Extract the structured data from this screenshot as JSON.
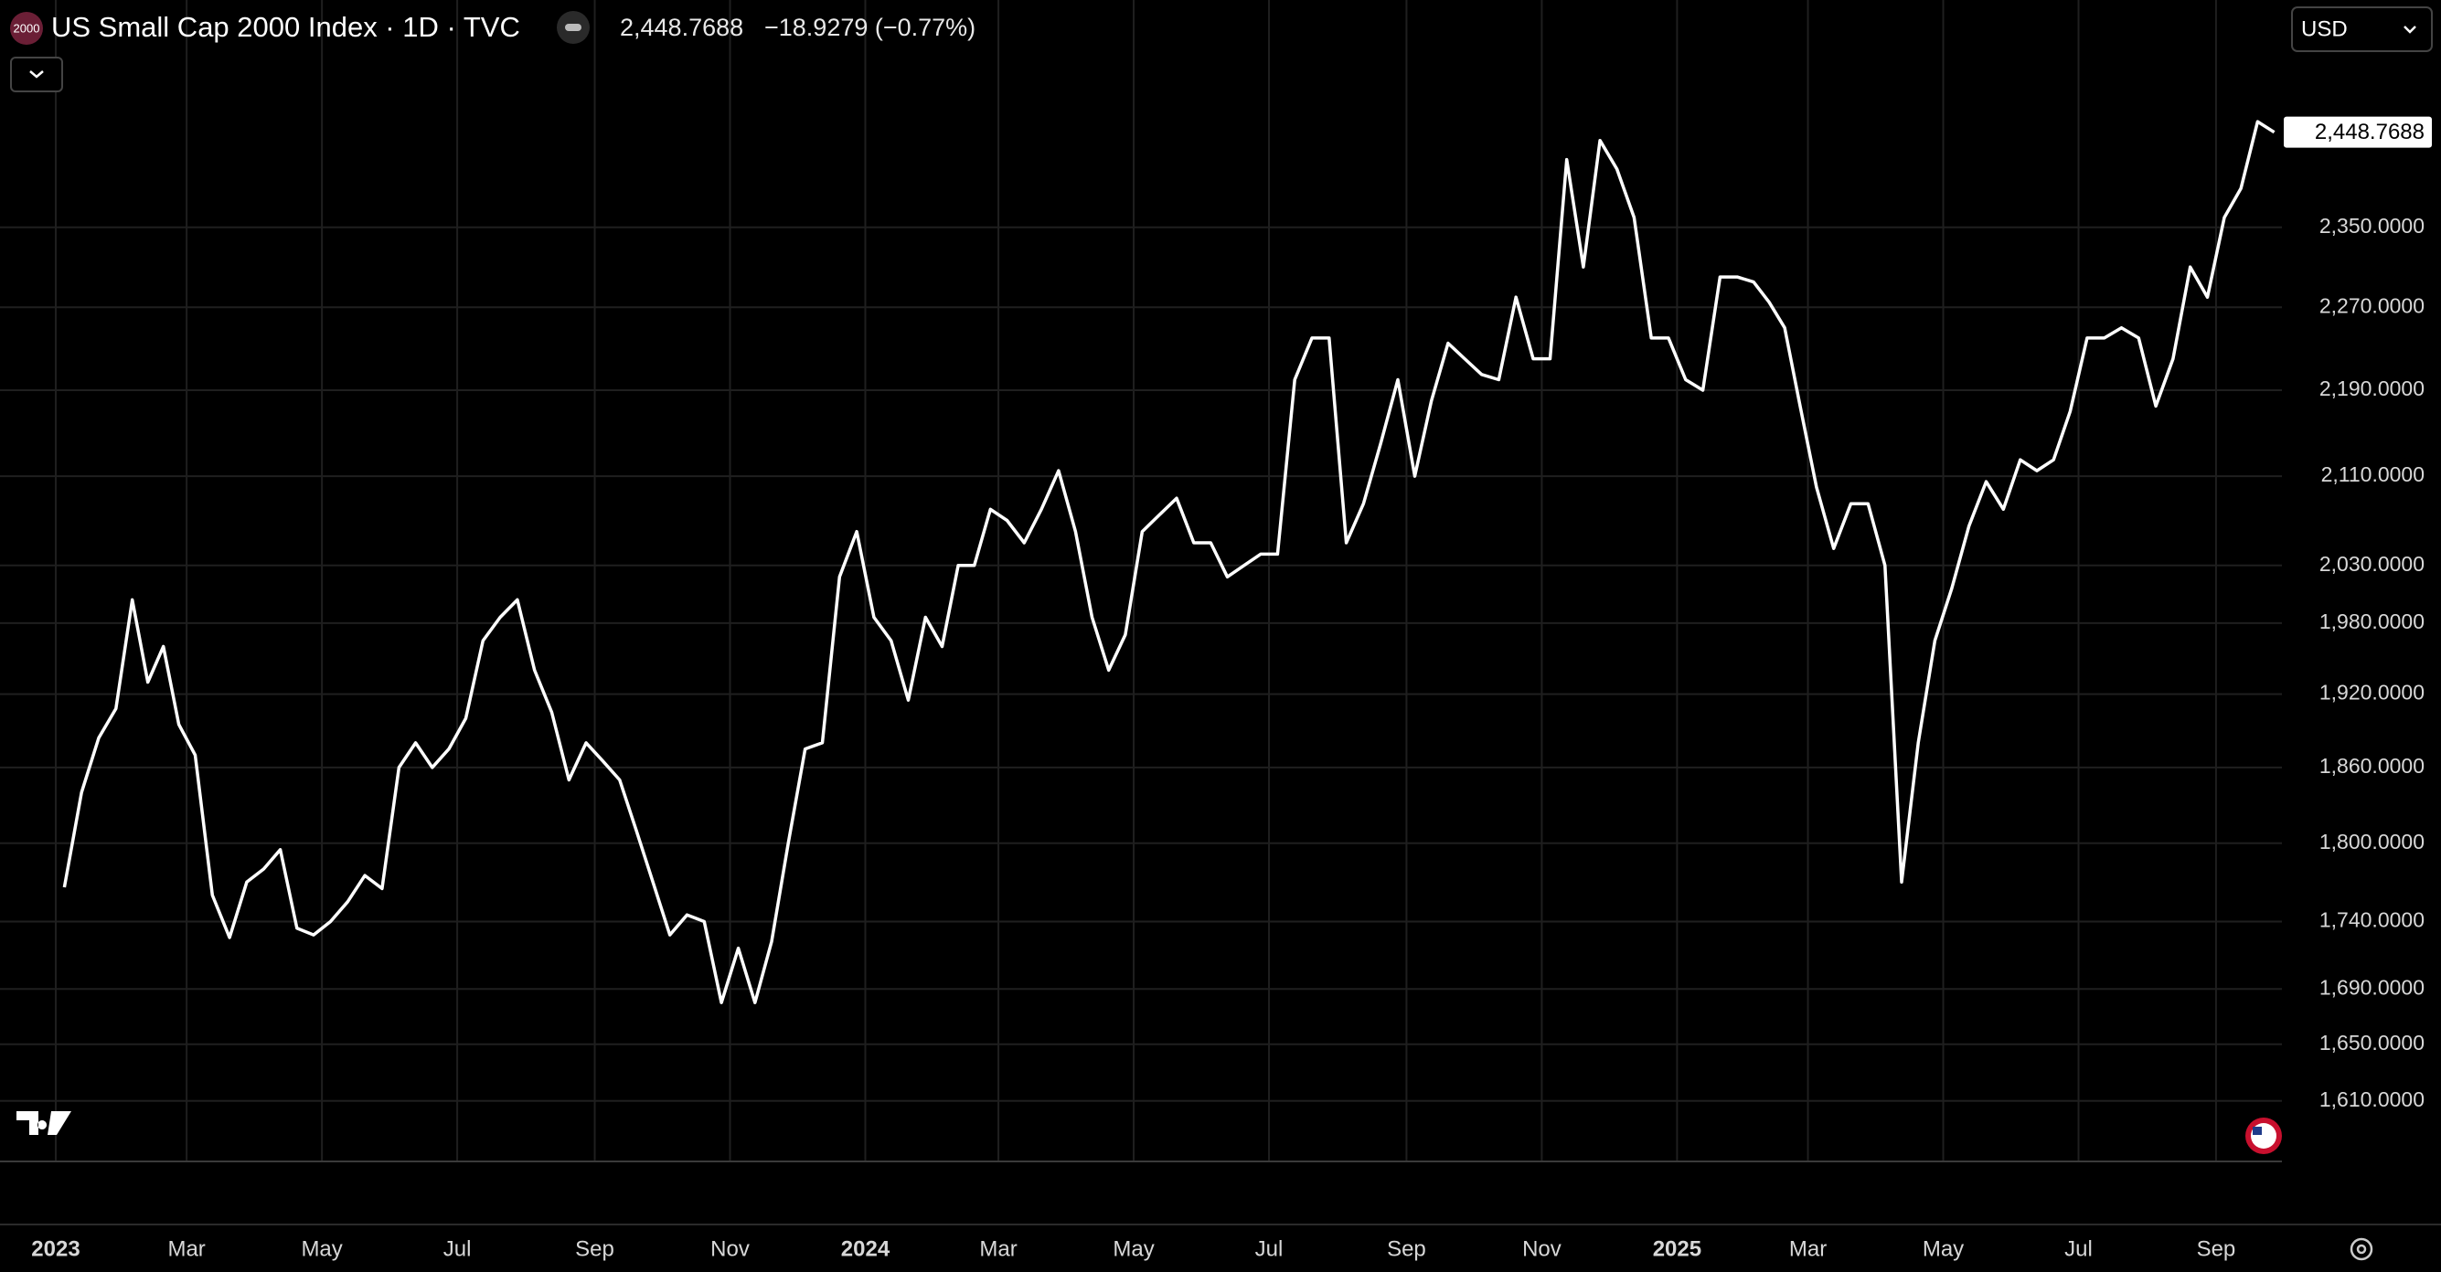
{
  "chart_data": {
    "type": "line",
    "symbol_badge": "2000",
    "title": "US Small Cap 2000 Index · 1D · TVC",
    "price_label": "2,448.7688",
    "change_label": "−18.9279 (−0.77%)",
    "currency": "USD",
    "color": "#ffffff",
    "log_scale": true,
    "grid": true,
    "ylim": [
      1569,
      2593
    ],
    "yticks": [
      {
        "value": 1610,
        "label": "1,610.0000"
      },
      {
        "value": 1650,
        "label": "1,650.0000"
      },
      {
        "value": 1690,
        "label": "1,690.0000"
      },
      {
        "value": 1740,
        "label": "1,740.0000"
      },
      {
        "value": 1800,
        "label": "1,800.0000"
      },
      {
        "value": 1860,
        "label": "1,860.0000"
      },
      {
        "value": 1920,
        "label": "1,920.0000"
      },
      {
        "value": 1980,
        "label": "1,980.0000"
      },
      {
        "value": 2030,
        "label": "2,030.0000"
      },
      {
        "value": 2110,
        "label": "2,110.0000"
      },
      {
        "value": 2190,
        "label": "2,190.0000"
      },
      {
        "value": 2270,
        "label": "2,270.0000"
      },
      {
        "value": 2350,
        "label": "2,350.0000"
      }
    ],
    "xticks": [
      {
        "value": "2023-01",
        "label": "2023"
      },
      {
        "value": "2023-03",
        "label": "Mar"
      },
      {
        "value": "2023-05",
        "label": "May"
      },
      {
        "value": "2023-07",
        "label": "Jul"
      },
      {
        "value": "2023-09",
        "label": "Sep"
      },
      {
        "value": "2023-11",
        "label": "Nov"
      },
      {
        "value": "2024-01",
        "label": "2024"
      },
      {
        "value": "2024-03",
        "label": "Mar"
      },
      {
        "value": "2024-05",
        "label": "May"
      },
      {
        "value": "2024-07",
        "label": "Jul"
      },
      {
        "value": "2024-09",
        "label": "Sep"
      },
      {
        "value": "2024-11",
        "label": "Nov"
      },
      {
        "value": "2025-01",
        "label": "2025"
      },
      {
        "value": "2025-03",
        "label": "Mar"
      },
      {
        "value": "2025-05",
        "label": "May"
      },
      {
        "value": "2025-07",
        "label": "Jul"
      },
      {
        "value": "2025-09",
        "label": "Sep"
      }
    ],
    "x": [
      "2023-01",
      "2023-01",
      "2023-01",
      "2023-01",
      "2023-02",
      "2023-02",
      "2023-02",
      "2023-02",
      "2023-03",
      "2023-03",
      "2023-03",
      "2023-03",
      "2023-04",
      "2023-04",
      "2023-04",
      "2023-04",
      "2023-05",
      "2023-05",
      "2023-05",
      "2023-05",
      "2023-06",
      "2023-06",
      "2023-06",
      "2023-06",
      "2023-07",
      "2023-07",
      "2023-07",
      "2023-07",
      "2023-08",
      "2023-08",
      "2023-08",
      "2023-08",
      "2023-09",
      "2023-09",
      "2023-09",
      "2023-09",
      "2023-10",
      "2023-10",
      "2023-10",
      "2023-10",
      "2023-11",
      "2023-11",
      "2023-11",
      "2023-11",
      "2023-12",
      "2023-12",
      "2023-12",
      "2023-12",
      "2024-01",
      "2024-01",
      "2024-01",
      "2024-01",
      "2024-02",
      "2024-02",
      "2024-02",
      "2024-02",
      "2024-03",
      "2024-03",
      "2024-03",
      "2024-03",
      "2024-04",
      "2024-04",
      "2024-04",
      "2024-04",
      "2024-05",
      "2024-05",
      "2024-05",
      "2024-05",
      "2024-06",
      "2024-06",
      "2024-06",
      "2024-06",
      "2024-07",
      "2024-07",
      "2024-07",
      "2024-07",
      "2024-08",
      "2024-08",
      "2024-08",
      "2024-08",
      "2024-09",
      "2024-09",
      "2024-09",
      "2024-09",
      "2024-10",
      "2024-10",
      "2024-10",
      "2024-10",
      "2024-11",
      "2024-11",
      "2024-11",
      "2024-11",
      "2024-12",
      "2024-12",
      "2024-12",
      "2024-12",
      "2025-01",
      "2025-01",
      "2025-01",
      "2025-01",
      "2025-02",
      "2025-02",
      "2025-02",
      "2025-02",
      "2025-03",
      "2025-03",
      "2025-03",
      "2025-03",
      "2025-04",
      "2025-04",
      "2025-04",
      "2025-04",
      "2025-05",
      "2025-05",
      "2025-05",
      "2025-05",
      "2025-06",
      "2025-06",
      "2025-06",
      "2025-06",
      "2025-07",
      "2025-07",
      "2025-07",
      "2025-07",
      "2025-08",
      "2025-08",
      "2025-08",
      "2025-08",
      "2025-09",
      "2025-09",
      "2025-09",
      "2025-09"
    ],
    "values": [
      1766,
      1840,
      1884,
      1908,
      2000,
      1930,
      1960,
      1895,
      1870,
      1760,
      1728,
      1770,
      1780,
      1795,
      1735,
      1730,
      1740,
      1755,
      1775,
      1765,
      1860,
      1880,
      1860,
      1875,
      1900,
      1965,
      1985,
      2000,
      1940,
      1905,
      1850,
      1880,
      1865,
      1850,
      1810,
      1770,
      1730,
      1745,
      1740,
      1680,
      1720,
      1680,
      1725,
      1800,
      1875,
      1880,
      2020,
      2060,
      1985,
      1965,
      1915,
      1985,
      1960,
      2030,
      2030,
      2080,
      2070,
      2050,
      2080,
      2115,
      2060,
      1985,
      1940,
      1970,
      2060,
      2075,
      2090,
      2050,
      2050,
      2020,
      2030,
      2040,
      2040,
      2200,
      2240,
      2240,
      2050,
      2085,
      2140,
      2200,
      2110,
      2180,
      2235,
      2220,
      2205,
      2200,
      2280,
      2220,
      2220,
      2420,
      2310,
      2440,
      2410,
      2360,
      2240,
      2240,
      2200,
      2190,
      2300,
      2300,
      2295,
      2275,
      2250,
      2175,
      2100,
      2045,
      2085,
      2085,
      2030,
      1770,
      1880,
      1965,
      2010,
      2065,
      2105,
      2080,
      2125,
      2115,
      2125,
      2170,
      2240,
      2240,
      2250,
      2240,
      2175,
      2220,
      2310,
      2280,
      2360,
      2390,
      2460,
      2448.7688
    ]
  }
}
